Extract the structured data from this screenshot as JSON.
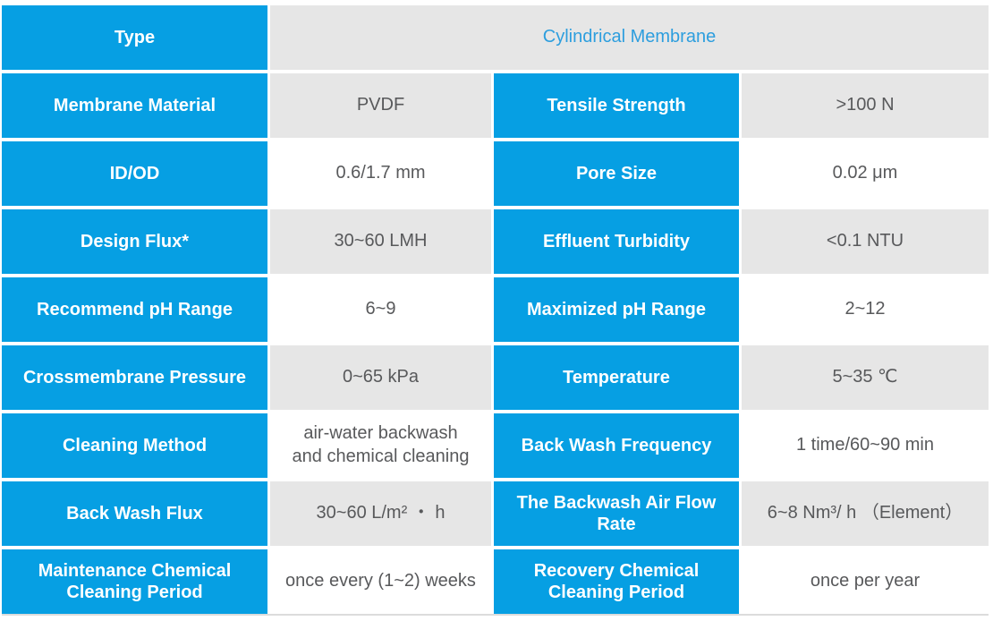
{
  "colors": {
    "accent-blue": "#069FE3",
    "type-value-text": "#2D9EDE",
    "cell-gray": "#E6E6E6",
    "value-text": "#58595B",
    "divider": "#DCDCDC"
  },
  "table": {
    "type_row": {
      "label": "Type",
      "value": "Cylindrical Membrane"
    },
    "rows": [
      {
        "label_left": "Membrane Material",
        "value_left": "PVDF",
        "label_right": "Tensile Strength",
        "value_right": ">100 N"
      },
      {
        "label_left": "ID/OD",
        "value_left": "0.6/1.7 mm",
        "label_right": "Pore Size",
        "value_right": "0.02 μm"
      },
      {
        "label_left": "Design Flux*",
        "value_left": "30~60 LMH",
        "label_right": "Effluent Turbidity",
        "value_right": "<0.1 NTU"
      },
      {
        "label_left": "Recommend pH Range",
        "value_left": "6~9",
        "label_right": "Maximized pH Range",
        "value_right": "2~12"
      },
      {
        "label_left": "Crossmembrane Pressure",
        "value_left": "0~65 kPa",
        "label_right": "Temperature",
        "value_right": "5~35 ℃"
      },
      {
        "label_left": "Cleaning Method",
        "value_left": "air-water backwash\nand chemical cleaning",
        "label_right": "Back Wash Frequency",
        "value_right": "1 time/60~90 min"
      },
      {
        "label_left": "Back Wash Flux",
        "value_left": "30~60 L/m² ・ h",
        "label_right": "The Backwash Air Flow\nRate",
        "value_right": "6~8 Nm³/ h （Element）"
      },
      {
        "label_left": "Maintenance Chemical\nCleaning Period",
        "value_left": "once every (1~2) weeks",
        "label_right": "Recovery Chemical\nCleaning Period",
        "value_right": "once per year"
      }
    ]
  }
}
